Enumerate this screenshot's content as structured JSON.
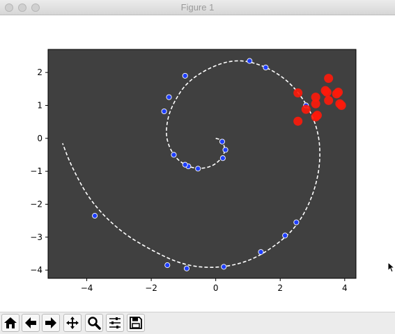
{
  "window": {
    "title": "Figure 1"
  },
  "chart_data": {
    "type": "scatter",
    "title": "",
    "xlabel": "",
    "ylabel": "",
    "xlim": [
      -5.2,
      4.35
    ],
    "ylim": [
      -4.25,
      2.7
    ],
    "xticks": [
      -4,
      -2,
      0,
      2,
      4
    ],
    "yticks": [
      2,
      1,
      0,
      -1,
      -2,
      -3,
      -4
    ],
    "xtick_labels": [
      "−4",
      "−2",
      "0",
      "2",
      "4"
    ],
    "ytick_labels": [
      "2",
      "1",
      "0",
      "−1",
      "−2",
      "−3",
      "−4"
    ],
    "grid": false,
    "background_color": "#404040",
    "spiral_line": {
      "style": "dashed",
      "color": "#ffffff",
      "points": [
        [
          0,
          0
        ],
        [
          0.2,
          -0.05
        ],
        [
          0.3,
          -0.35
        ],
        [
          0.2,
          -0.6
        ],
        [
          -0.1,
          -0.85
        ],
        [
          -0.5,
          -0.93
        ],
        [
          -0.9,
          -0.85
        ],
        [
          -1.3,
          -0.55
        ],
        [
          -1.55,
          0
        ],
        [
          -1.5,
          0.6
        ],
        [
          -1.3,
          1.1
        ],
        [
          -0.9,
          1.7
        ],
        [
          -0.2,
          2.15
        ],
        [
          0.6,
          2.4
        ],
        [
          1.4,
          2.25
        ],
        [
          2.2,
          1.8
        ],
        [
          2.8,
          1.1
        ],
        [
          3.2,
          0.2
        ],
        [
          3.25,
          -0.8
        ],
        [
          3.0,
          -1.8
        ],
        [
          2.5,
          -2.7
        ],
        [
          1.8,
          -3.3
        ],
        [
          1.0,
          -3.75
        ],
        [
          0,
          -3.95
        ],
        [
          -1.0,
          -3.85
        ],
        [
          -2.0,
          -3.4
        ],
        [
          -3.0,
          -2.8
        ],
        [
          -3.9,
          -1.9
        ],
        [
          -4.5,
          -0.8
        ],
        [
          -4.75,
          -0.15
        ]
      ]
    },
    "series": [
      {
        "values": [
          [
            0.2,
            -0.1
          ],
          [
            0.3,
            -0.35
          ],
          [
            0.22,
            -0.6
          ],
          [
            -0.55,
            -0.92
          ],
          [
            -0.85,
            -0.85
          ],
          [
            -0.95,
            -0.8
          ],
          [
            -1.3,
            -0.5
          ],
          [
            -1.6,
            0.82
          ],
          [
            -1.45,
            1.25
          ],
          [
            -0.95,
            1.9
          ],
          [
            1.05,
            2.35
          ],
          [
            1.55,
            2.15
          ],
          [
            2.8,
            1.0
          ],
          [
            2.5,
            -2.55
          ],
          [
            2.15,
            -2.95
          ],
          [
            1.4,
            -3.45
          ],
          [
            0.25,
            -3.9
          ],
          [
            -0.9,
            -3.95
          ],
          [
            -1.5,
            -3.85
          ],
          [
            -3.75,
            -2.35
          ]
        ],
        "color": "#1f3fff",
        "edge_color": "#ffffff",
        "marker_size": "small"
      },
      {
        "values": [
          [
            2.55,
            0.52
          ],
          [
            2.55,
            1.38
          ],
          [
            2.8,
            0.88
          ],
          [
            3.1,
            0.65
          ],
          [
            3.15,
            0.7
          ],
          [
            3.1,
            1.05
          ],
          [
            3.1,
            1.25
          ],
          [
            3.4,
            1.45
          ],
          [
            3.45,
            1.4
          ],
          [
            3.5,
            1.15
          ],
          [
            3.5,
            1.82
          ],
          [
            3.75,
            1.35
          ],
          [
            3.8,
            1.4
          ],
          [
            3.85,
            1.05
          ],
          [
            3.9,
            1.0
          ]
        ],
        "color": "#ff1a0a",
        "marker_size": "large"
      }
    ]
  },
  "toolbar": {
    "buttons": [
      {
        "name": "home-button",
        "icon": "home-icon"
      },
      {
        "name": "back-button",
        "icon": "arrow-left-icon"
      },
      {
        "name": "forward-button",
        "icon": "arrow-right-icon"
      },
      {
        "name": "pan-button",
        "icon": "move-icon"
      },
      {
        "name": "zoom-button",
        "icon": "magnifier-icon"
      },
      {
        "name": "configure-subplots-button",
        "icon": "sliders-icon"
      },
      {
        "name": "save-button",
        "icon": "floppy-disk-icon"
      }
    ]
  }
}
